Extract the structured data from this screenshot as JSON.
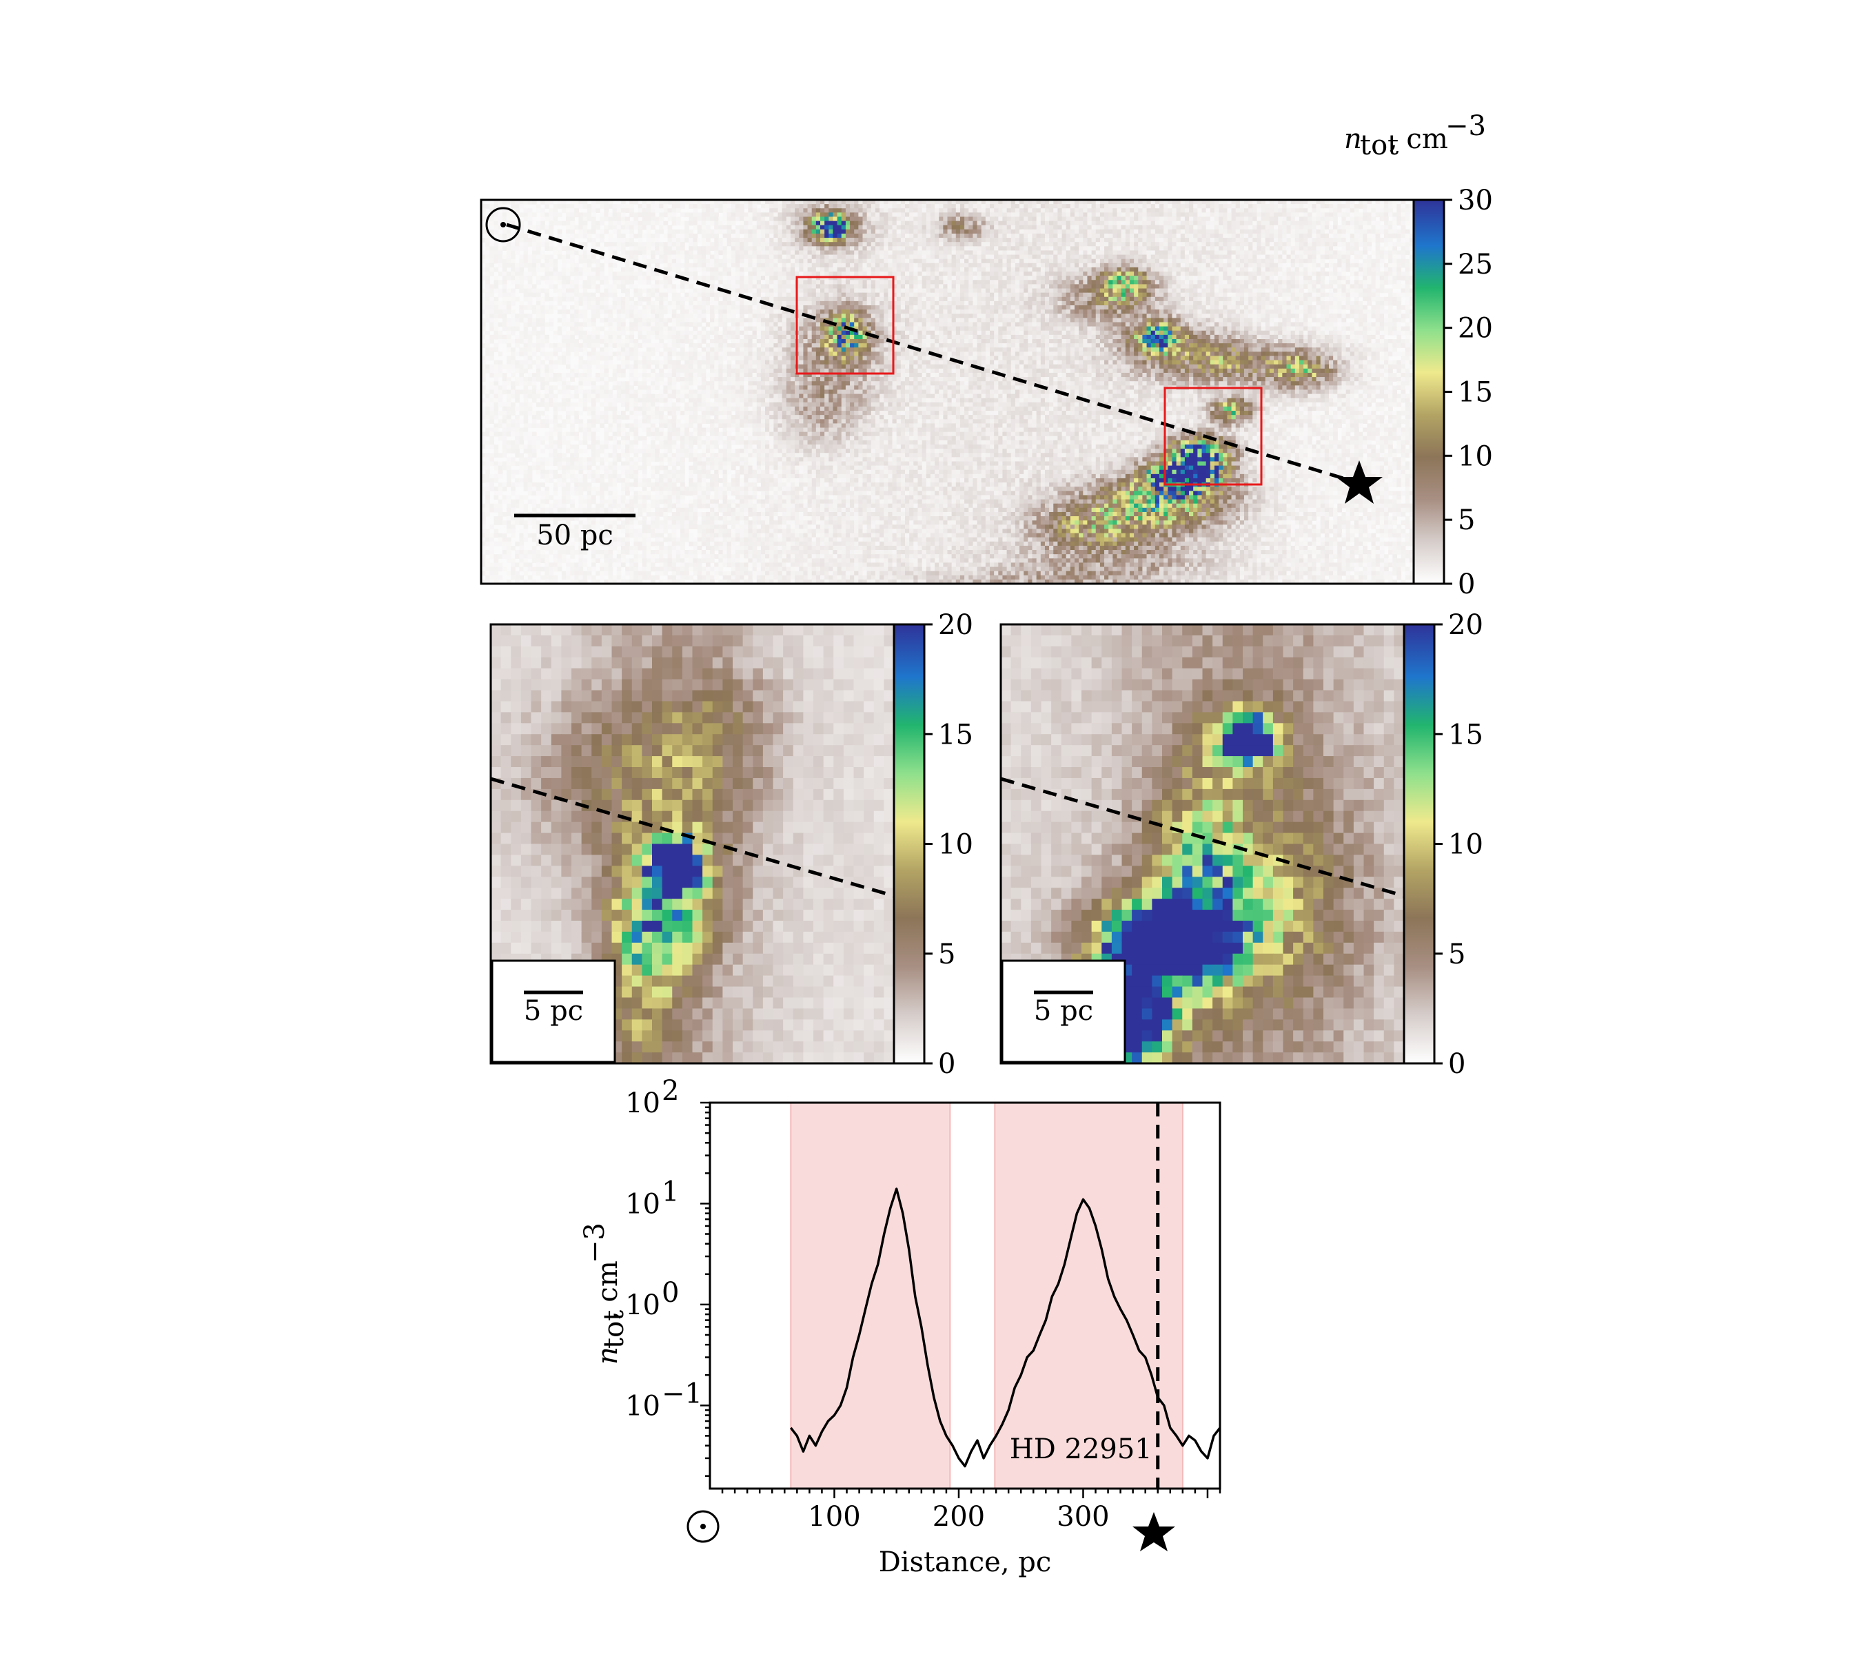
{
  "colorbar": {
    "label": "n_tot, cm^-3",
    "colormap": [
      "#ffffff",
      "#d6cdca",
      "#a88f83",
      "#8c7558",
      "#b3a464",
      "#efe98d",
      "#8fe08c",
      "#22b56e",
      "#1f76cc",
      "#2f3399"
    ]
  },
  "main_map": {
    "clim": [
      0,
      30
    ],
    "colorbar_ticks": [
      "0",
      "5",
      "10",
      "15",
      "20",
      "25",
      "30"
    ],
    "scale_bar_label": "50 pc",
    "sun_symbol": "sun-icon",
    "star_symbol": "star-icon",
    "highlight_box_color": "#e8191b"
  },
  "zoom_left": {
    "clim": [
      0,
      20
    ],
    "colorbar_ticks": [
      "0",
      "5",
      "10",
      "15",
      "20"
    ],
    "scale_bar_label": "5 pc"
  },
  "zoom_right": {
    "clim": [
      0,
      20
    ],
    "colorbar_ticks": [
      "0",
      "5",
      "10",
      "15",
      "20"
    ],
    "scale_bar_label": "5 pc"
  },
  "chart_data": {
    "type": "line",
    "xlabel": "Distance, pc",
    "ylabel": "n_tot, cm^-3",
    "xlim": [
      0,
      410
    ],
    "ylim": [
      0.015,
      100
    ],
    "yscale": "log",
    "x_ticks": [
      "100",
      "200",
      "300"
    ],
    "y_ticks": [
      "10^-1",
      "10^0",
      "10^1",
      "10^2"
    ],
    "shaded_intervals": [
      [
        65,
        193
      ],
      [
        229,
        380
      ]
    ],
    "shade_color": "#fadbdb",
    "vline": {
      "x": 360,
      "label": "HD 22951"
    },
    "series": [
      {
        "x": [
          65,
          70,
          75,
          80,
          85,
          90,
          95,
          100,
          105,
          110,
          115,
          120,
          125,
          130,
          135,
          140,
          145,
          150,
          155,
          160,
          165,
          170,
          175,
          180,
          185,
          190,
          195,
          200,
          205,
          210,
          215,
          220,
          225,
          230,
          235,
          240,
          245,
          250,
          255,
          260,
          265,
          270,
          275,
          280,
          285,
          290,
          295,
          300,
          305,
          310,
          315,
          320,
          325,
          330,
          335,
          340,
          345,
          350,
          355,
          360,
          365,
          370,
          375,
          380,
          385,
          390,
          395,
          400,
          405,
          410
        ],
        "y": [
          0.06,
          0.05,
          0.035,
          0.05,
          0.04,
          0.055,
          0.07,
          0.08,
          0.1,
          0.15,
          0.3,
          0.5,
          0.9,
          1.6,
          2.5,
          5,
          9,
          14,
          8,
          3.5,
          1.2,
          0.6,
          0.25,
          0.12,
          0.07,
          0.05,
          0.04,
          0.03,
          0.025,
          0.035,
          0.045,
          0.03,
          0.04,
          0.05,
          0.065,
          0.09,
          0.15,
          0.2,
          0.3,
          0.35,
          0.5,
          0.7,
          1.2,
          1.6,
          2.5,
          4.5,
          8,
          11,
          9,
          6,
          3.5,
          1.8,
          1.2,
          0.9,
          0.7,
          0.5,
          0.35,
          0.3,
          0.2,
          0.12,
          0.1,
          0.06,
          0.05,
          0.04,
          0.05,
          0.045,
          0.035,
          0.03,
          0.05,
          0.06
        ]
      }
    ]
  }
}
